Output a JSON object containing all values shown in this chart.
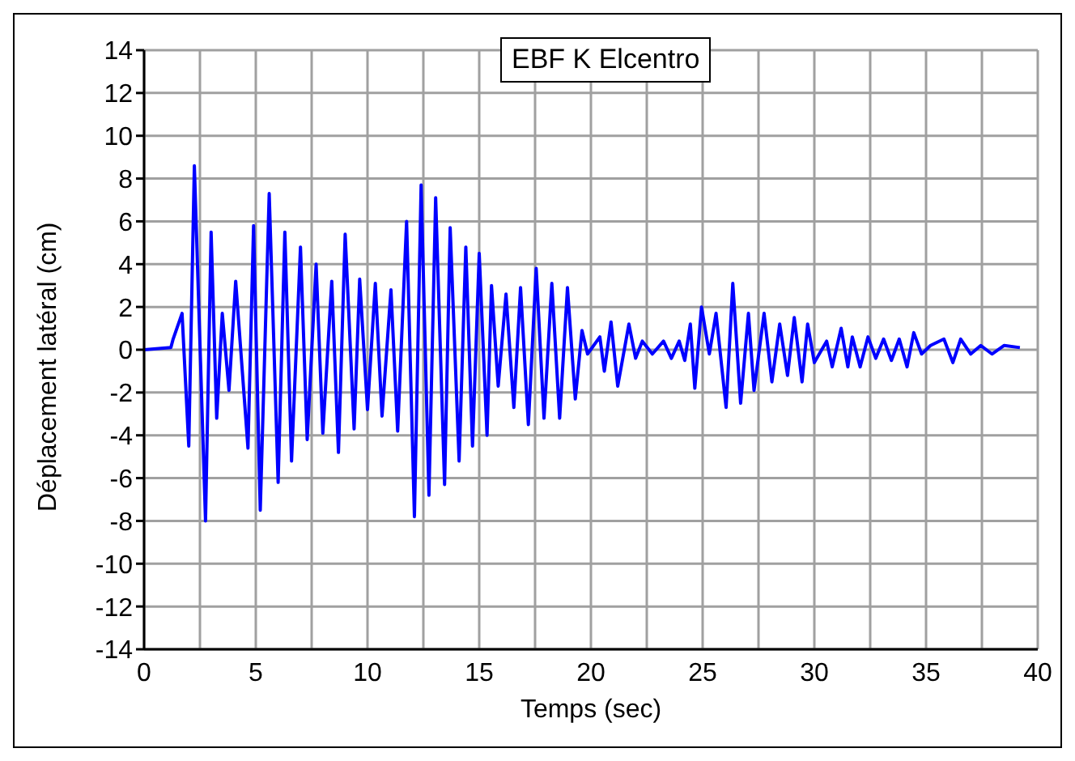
{
  "chart_data": {
    "type": "line",
    "title": "EBF K Elcentro",
    "xlabel": "Temps (sec)",
    "ylabel": "Déplacement latéral (cm)",
    "x": [
      0,
      1.2,
      1.3,
      1.7,
      2.0,
      2.25,
      2.75,
      3.0,
      3.25,
      3.5,
      3.8,
      4.1,
      4.65,
      4.9,
      5.2,
      5.6,
      6.0,
      6.3,
      6.6,
      7.0,
      7.3,
      7.7,
      8.0,
      8.4,
      8.7,
      9.0,
      9.4,
      9.65,
      10.0,
      10.35,
      10.65,
      11.05,
      11.35,
      11.75,
      12.1,
      12.4,
      12.75,
      13.05,
      13.45,
      13.7,
      14.1,
      14.4,
      14.7,
      15.0,
      15.35,
      15.55,
      15.85,
      16.2,
      16.55,
      16.85,
      17.2,
      17.55,
      17.9,
      18.25,
      18.6,
      18.95,
      19.3,
      19.6,
      19.85,
      20.4,
      20.6,
      20.9,
      21.2,
      21.7,
      22.0,
      22.3,
      22.75,
      23.25,
      23.6,
      23.95,
      24.2,
      24.45,
      24.65,
      24.95,
      25.3,
      25.6,
      26.05,
      26.35,
      26.7,
      27.05,
      27.3,
      27.75,
      28.1,
      28.45,
      28.8,
      29.1,
      29.45,
      29.7,
      30.0,
      30.55,
      30.8,
      31.2,
      31.5,
      31.7,
      32.05,
      32.4,
      32.75,
      33.1,
      33.45,
      33.8,
      34.15,
      34.45,
      34.8,
      35.2,
      35.8,
      36.2,
      36.55,
      37.0,
      37.45,
      37.95,
      38.5,
      39.2
    ],
    "series": [
      {
        "color": "#0000ff",
        "values": [
          0,
          0.1,
          0.5,
          1.7,
          -4.5,
          8.6,
          -8.0,
          5.5,
          -3.2,
          1.7,
          -1.9,
          3.2,
          -4.6,
          5.8,
          -7.5,
          7.3,
          -6.2,
          5.5,
          -5.2,
          4.8,
          -4.2,
          4.0,
          -3.9,
          3.2,
          -4.8,
          5.4,
          -3.7,
          3.3,
          -2.8,
          3.1,
          -3.1,
          2.8,
          -3.8,
          6.0,
          -7.8,
          7.7,
          -6.8,
          7.1,
          -6.3,
          5.7,
          -5.2,
          4.8,
          -4.5,
          4.5,
          -4.0,
          3.0,
          -1.7,
          2.6,
          -2.7,
          2.9,
          -3.5,
          3.8,
          -3.2,
          3.1,
          -3.2,
          2.9,
          -2.3,
          0.9,
          -0.2,
          0.6,
          -1.0,
          1.3,
          -1.7,
          1.2,
          -0.4,
          0.4,
          -0.2,
          0.4,
          -0.4,
          0.4,
          -0.5,
          1.2,
          -1.8,
          2.0,
          -0.2,
          1.7,
          -2.7,
          3.1,
          -2.5,
          1.7,
          -1.9,
          1.7,
          -1.5,
          1.2,
          -1.2,
          1.5,
          -1.5,
          1.2,
          -0.6,
          0.4,
          -0.8,
          1.0,
          -0.8,
          0.6,
          -0.8,
          0.6,
          -0.4,
          0.5,
          -0.5,
          0.5,
          -0.8,
          0.8,
          -0.2,
          0.2,
          0.5,
          -0.6,
          0.5,
          -0.2,
          0.2,
          -0.2,
          0.2,
          0.1
        ]
      }
    ],
    "xlim": [
      0,
      40
    ],
    "xticks": [
      0,
      {
        "value": 2.5,
        "label": null
      },
      5,
      {
        "value": 7.5,
        "label": null
      },
      10,
      {
        "value": 12.5,
        "label": null
      },
      15,
      {
        "value": 17.5,
        "label": null
      },
      20,
      {
        "value": 22.5,
        "label": null
      },
      25,
      {
        "value": 27.5,
        "label": null
      },
      30,
      {
        "value": 32.5,
        "label": null
      },
      35,
      {
        "value": 37.5,
        "label": null
      },
      40
    ],
    "ylim": [
      -14,
      14
    ],
    "yticks": [
      -14,
      -12,
      -10,
      -8,
      -6,
      -4,
      -2,
      0,
      2,
      4,
      6,
      8,
      10,
      12,
      14
    ],
    "grid": true,
    "marker": "none",
    "line_style": "solid"
  }
}
